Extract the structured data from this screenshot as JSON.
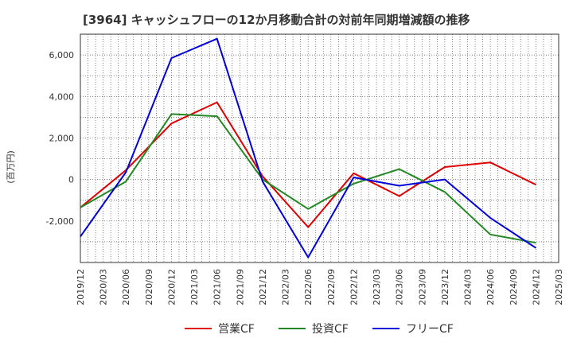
{
  "chart_data": {
    "type": "line",
    "title": "[3964]  キャッシュフローの12か月移動合計の対前年同期増減額の推移",
    "ylabel": "(百万円)",
    "xlabel": "",
    "x_ticks": [
      "2019/12",
      "2020/03",
      "2020/06",
      "2020/09",
      "2020/12",
      "2021/03",
      "2021/06",
      "2021/09",
      "2021/12",
      "2022/03",
      "2022/06",
      "2022/09",
      "2022/12",
      "2023/03",
      "2023/06",
      "2023/09",
      "2023/12",
      "2024/03",
      "2024/06",
      "2024/09",
      "2024/12",
      "2025/03"
    ],
    "y_ticks": [
      -2000,
      0,
      2000,
      4000,
      6000
    ],
    "y_tick_labels": [
      "-2,000",
      "0",
      "2,000",
      "4,000",
      "6,000"
    ],
    "ylim": [
      -4000,
      7000
    ],
    "grid": true,
    "legend_position": "bottom",
    "series": [
      {
        "name": "営業CF",
        "color": "#e00000",
        "x": [
          "2019/12",
          "2020/06",
          "2020/12",
          "2021/06",
          "2021/12",
          "2022/06",
          "2022/12",
          "2023/06",
          "2023/12",
          "2024/06",
          "2024/12"
        ],
        "values": [
          -1350,
          450,
          2700,
          3720,
          150,
          -2300,
          300,
          -800,
          600,
          820,
          -250
        ]
      },
      {
        "name": "投資CF",
        "color": "#228822",
        "x": [
          "2019/12",
          "2020/06",
          "2020/12",
          "2021/06",
          "2021/12",
          "2022/06",
          "2022/12",
          "2023/06",
          "2023/12",
          "2024/06",
          "2024/12"
        ],
        "values": [
          -1350,
          -100,
          3150,
          3050,
          0,
          -1420,
          -200,
          500,
          -600,
          -2650,
          -3050
        ]
      },
      {
        "name": "フリーCF",
        "color": "#0000dd",
        "x": [
          "2019/12",
          "2020/06",
          "2020/12",
          "2021/06",
          "2021/12",
          "2022/06",
          "2022/12",
          "2023/06",
          "2023/12",
          "2024/06",
          "2024/12"
        ],
        "values": [
          -2750,
          350,
          5850,
          6780,
          -100,
          -3750,
          100,
          -300,
          0,
          -1850,
          -3300
        ]
      }
    ]
  }
}
